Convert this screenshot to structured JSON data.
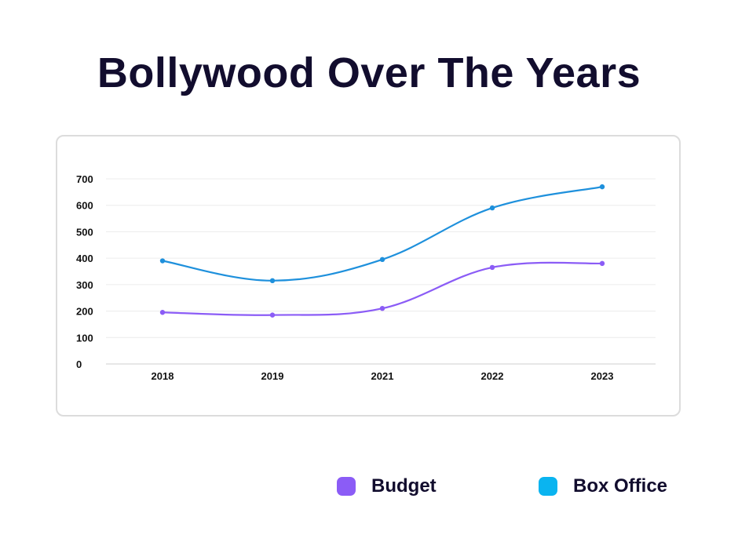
{
  "title": "Bollywood Over The Years",
  "chart_data": {
    "type": "line",
    "title": "Bollywood Over The Years",
    "categories": [
      "2018",
      "2019",
      "2021",
      "2022",
      "2023"
    ],
    "series": [
      {
        "name": "Budget",
        "color": "#8b5cf6",
        "values": [
          195,
          185,
          210,
          365,
          380
        ]
      },
      {
        "name": "Box Office",
        "color": "#1e90dc",
        "values": [
          390,
          315,
          395,
          590,
          670
        ]
      }
    ],
    "yticks": [
      "0",
      "100",
      "200",
      "300",
      "400",
      "500",
      "600",
      "700"
    ],
    "ylim": [
      0,
      700
    ],
    "xlabel": "",
    "ylabel": "",
    "grid": true,
    "smooth": true,
    "legend_position": "bottom-right"
  },
  "legend": [
    {
      "label": "Budget",
      "color": "#8b5cf6"
    },
    {
      "label": "Box Office",
      "color": "#0ab4f0"
    }
  ]
}
